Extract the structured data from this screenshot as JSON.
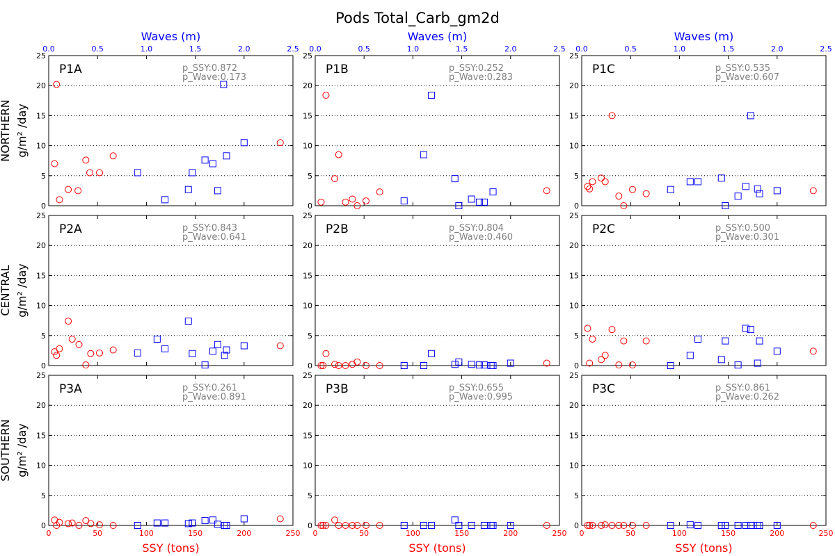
{
  "figure": {
    "title": "Pods Total_Carb_gm2d",
    "row_labels": [
      "NORTHERN",
      "CENTRAL",
      "SOUTHERN"
    ],
    "y_unit_label": "g/m² /day",
    "x_axis_bottom_label": "SSY (tons)",
    "x_axis_top_label": "Waves (m)",
    "ssy_color": "#ff0000",
    "wave_color": "#0000ff",
    "stat_color": "#808080",
    "grid": "dotted horizontal"
  },
  "chart_data": [
    {
      "panel": "P1A",
      "row": 0,
      "col": 0,
      "type": "scatter",
      "p_ssy": "p_SSY:0.872",
      "p_wave": "p_Wave:0.173",
      "xlim": [
        0,
        250
      ],
      "top_xlim": [
        0,
        2.5
      ],
      "ylim": [
        0,
        25
      ],
      "xticks": [
        0,
        50,
        100,
        150,
        200,
        250
      ],
      "top_xticks": [
        "0.0",
        "0.5",
        "1.0",
        "1.5",
        "2.0",
        "2.5"
      ],
      "yticks": [
        0,
        5,
        10,
        15,
        20,
        25
      ],
      "ssy": [
        [
          6,
          7.0
        ],
        [
          8,
          20.2
        ],
        [
          11,
          1.0
        ],
        [
          20,
          2.7
        ],
        [
          30,
          2.5
        ],
        [
          38,
          7.6
        ],
        [
          42,
          5.5
        ],
        [
          52,
          5.5
        ],
        [
          66,
          8.3
        ],
        [
          237,
          10.5
        ]
      ],
      "wave": [
        [
          0.91,
          5.5
        ],
        [
          1.19,
          1.0
        ],
        [
          1.43,
          2.7
        ],
        [
          1.47,
          5.5
        ],
        [
          1.6,
          7.6
        ],
        [
          1.68,
          7.0
        ],
        [
          1.73,
          2.5
        ],
        [
          1.79,
          20.2
        ],
        [
          1.82,
          8.3
        ],
        [
          2.0,
          10.5
        ]
      ]
    },
    {
      "panel": "P1B",
      "row": 0,
      "col": 1,
      "type": "scatter",
      "p_ssy": "p_SSY:0.252",
      "p_wave": "p_Wave:0.283",
      "xlim": [
        0,
        250
      ],
      "top_xlim": [
        0,
        2.5
      ],
      "ylim": [
        0,
        25
      ],
      "xticks": [
        0,
        50,
        100,
        150,
        200,
        250
      ],
      "top_xticks": [
        "0.0",
        "0.5",
        "1.0",
        "1.5",
        "2.0",
        "2.5"
      ],
      "yticks": [
        0,
        5,
        10,
        15,
        20,
        25
      ],
      "ssy": [
        [
          6,
          0.6
        ],
        [
          11,
          18.4
        ],
        [
          20,
          4.5
        ],
        [
          24,
          8.5
        ],
        [
          31,
          0.6
        ],
        [
          38,
          1.1
        ],
        [
          43,
          0
        ],
        [
          52,
          0.8
        ],
        [
          66,
          2.3
        ],
        [
          237,
          2.5
        ]
      ],
      "wave": [
        [
          0.91,
          0.8
        ],
        [
          1.11,
          8.5
        ],
        [
          1.19,
          18.4
        ],
        [
          1.43,
          4.5
        ],
        [
          1.47,
          0
        ],
        [
          1.6,
          1.1
        ],
        [
          1.68,
          0.6
        ],
        [
          1.73,
          0.6
        ],
        [
          1.82,
          2.3
        ]
      ]
    },
    {
      "panel": "P1C",
      "row": 0,
      "col": 2,
      "type": "scatter",
      "p_ssy": "p_SSY:0.535",
      "p_wave": "p_Wave:0.607",
      "xlim": [
        0,
        250
      ],
      "top_xlim": [
        0,
        2.5
      ],
      "ylim": [
        0,
        25
      ],
      "xticks": [
        0,
        50,
        100,
        150,
        200,
        250
      ],
      "top_xticks": [
        "0.0",
        "0.5",
        "1.0",
        "1.5",
        "2.0",
        "2.5"
      ],
      "yticks": [
        0,
        5,
        10,
        15,
        20,
        25
      ],
      "ssy": [
        [
          6,
          3.2
        ],
        [
          8,
          2.8
        ],
        [
          11,
          4.0
        ],
        [
          20,
          4.6
        ],
        [
          24,
          4.0
        ],
        [
          31,
          15.0
        ],
        [
          38,
          1.6
        ],
        [
          43,
          0
        ],
        [
          52,
          2.7
        ],
        [
          66,
          2.0
        ],
        [
          237,
          2.5
        ]
      ],
      "wave": [
        [
          0.91,
          2.7
        ],
        [
          1.11,
          4.0
        ],
        [
          1.19,
          4.0
        ],
        [
          1.43,
          4.6
        ],
        [
          1.47,
          0
        ],
        [
          1.6,
          1.6
        ],
        [
          1.68,
          3.2
        ],
        [
          1.73,
          15.0
        ],
        [
          1.8,
          2.8
        ],
        [
          1.82,
          2.0
        ],
        [
          2.0,
          2.5
        ]
      ]
    },
    {
      "panel": "P2A",
      "row": 1,
      "col": 0,
      "type": "scatter",
      "p_ssy": "p_SSY:0.843",
      "p_wave": "p_Wave:0.641",
      "xlim": [
        0,
        250
      ],
      "top_xlim": [
        0,
        2.5
      ],
      "ylim": [
        0,
        25
      ],
      "xticks": [
        0,
        50,
        100,
        150,
        200,
        250
      ],
      "top_xticks": [
        "0.0",
        "0.5",
        "1.0",
        "1.5",
        "2.0",
        "2.5"
      ],
      "yticks": [
        0,
        5,
        10,
        15,
        20,
        25
      ],
      "ssy": [
        [
          6,
          2.3
        ],
        [
          8,
          1.7
        ],
        [
          11,
          2.8
        ],
        [
          20,
          7.4
        ],
        [
          24,
          4.4
        ],
        [
          31,
          3.5
        ],
        [
          38,
          0.1
        ],
        [
          43,
          2.0
        ],
        [
          52,
          2.1
        ],
        [
          66,
          2.6
        ],
        [
          237,
          3.3
        ]
      ],
      "wave": [
        [
          0.91,
          2.1
        ],
        [
          1.11,
          4.4
        ],
        [
          1.19,
          2.8
        ],
        [
          1.43,
          7.4
        ],
        [
          1.47,
          2.0
        ],
        [
          1.6,
          0.1
        ],
        [
          1.68,
          2.4
        ],
        [
          1.73,
          3.5
        ],
        [
          1.8,
          1.7
        ],
        [
          1.82,
          2.6
        ],
        [
          2.0,
          3.3
        ]
      ]
    },
    {
      "panel": "P2B",
      "row": 1,
      "col": 1,
      "type": "scatter",
      "p_ssy": "p_SSY:0.804",
      "p_wave": "p_Wave:0.460",
      "xlim": [
        0,
        250
      ],
      "top_xlim": [
        0,
        2.5
      ],
      "ylim": [
        0,
        25
      ],
      "xticks": [
        0,
        50,
        100,
        150,
        200,
        250
      ],
      "top_xticks": [
        "0.0",
        "0.5",
        "1.0",
        "1.5",
        "2.0",
        "2.5"
      ],
      "yticks": [
        0,
        5,
        10,
        15,
        20,
        25
      ],
      "ssy": [
        [
          6,
          0
        ],
        [
          8,
          0
        ],
        [
          11,
          2.0
        ],
        [
          20,
          0.2
        ],
        [
          24,
          0
        ],
        [
          31,
          0
        ],
        [
          38,
          0.2
        ],
        [
          43,
          0.6
        ],
        [
          52,
          0
        ],
        [
          66,
          0
        ],
        [
          237,
          0.4
        ]
      ],
      "wave": [
        [
          0.91,
          0
        ],
        [
          1.11,
          0
        ],
        [
          1.19,
          2.0
        ],
        [
          1.43,
          0.2
        ],
        [
          1.47,
          0.6
        ],
        [
          1.6,
          0.2
        ],
        [
          1.68,
          0.1
        ],
        [
          1.73,
          0.1
        ],
        [
          1.8,
          0
        ],
        [
          1.82,
          0
        ],
        [
          2.0,
          0.4
        ]
      ]
    },
    {
      "panel": "P2C",
      "row": 1,
      "col": 2,
      "type": "scatter",
      "p_ssy": "p_SSY:0.500",
      "p_wave": "p_Wave:0.301",
      "xlim": [
        0,
        250
      ],
      "top_xlim": [
        0,
        2.5
      ],
      "ylim": [
        0,
        25
      ],
      "xticks": [
        0,
        50,
        100,
        150,
        200,
        250
      ],
      "top_xticks": [
        "0.0",
        "0.5",
        "1.0",
        "1.5",
        "2.0",
        "2.5"
      ],
      "yticks": [
        0,
        5,
        10,
        15,
        20,
        25
      ],
      "ssy": [
        [
          6,
          6.2
        ],
        [
          8,
          0.4
        ],
        [
          11,
          4.4
        ],
        [
          20,
          1.0
        ],
        [
          24,
          1.7
        ],
        [
          31,
          6.0
        ],
        [
          38,
          0.1
        ],
        [
          43,
          4.1
        ],
        [
          52,
          0.1
        ],
        [
          66,
          4.1
        ],
        [
          237,
          2.4
        ]
      ],
      "wave": [
        [
          0.91,
          0
        ],
        [
          1.11,
          1.7
        ],
        [
          1.19,
          4.4
        ],
        [
          1.43,
          1.0
        ],
        [
          1.47,
          4.1
        ],
        [
          1.6,
          0.1
        ],
        [
          1.68,
          6.2
        ],
        [
          1.73,
          6.0
        ],
        [
          1.8,
          0.4
        ],
        [
          1.82,
          4.1
        ],
        [
          2.0,
          2.4
        ]
      ]
    },
    {
      "panel": "P3A",
      "row": 2,
      "col": 0,
      "type": "scatter",
      "p_ssy": "p_SSY:0.261",
      "p_wave": "p_Wave:0.891",
      "xlim": [
        0,
        250
      ],
      "top_xlim": [
        0,
        2.5
      ],
      "ylim": [
        0,
        25
      ],
      "xticks": [
        0,
        50,
        100,
        150,
        200,
        250
      ],
      "top_xticks": [
        "0.0",
        "0.5",
        "1.0",
        "1.5",
        "2.0",
        "2.5"
      ],
      "yticks": [
        0,
        5,
        10,
        15,
        20,
        25
      ],
      "ssy": [
        [
          6,
          0.9
        ],
        [
          8,
          0
        ],
        [
          11,
          0.5
        ],
        [
          20,
          0.3
        ],
        [
          24,
          0.4
        ],
        [
          31,
          0
        ],
        [
          38,
          0.8
        ],
        [
          43,
          0.3
        ],
        [
          52,
          0.1
        ],
        [
          66,
          0
        ],
        [
          237,
          1.1
        ]
      ],
      "wave": [
        [
          0.91,
          0
        ],
        [
          1.11,
          0.4
        ],
        [
          1.19,
          0.4
        ],
        [
          1.43,
          0.3
        ],
        [
          1.47,
          0.4
        ],
        [
          1.6,
          0.8
        ],
        [
          1.68,
          0.9
        ],
        [
          1.73,
          0.2
        ],
        [
          1.8,
          0
        ],
        [
          1.82,
          0
        ],
        [
          2.0,
          1.1
        ]
      ]
    },
    {
      "panel": "P3B",
      "row": 2,
      "col": 1,
      "type": "scatter",
      "p_ssy": "p_SSY:0.655",
      "p_wave": "p_Wave:0.995",
      "xlim": [
        0,
        250
      ],
      "top_xlim": [
        0,
        2.5
      ],
      "ylim": [
        0,
        25
      ],
      "xticks": [
        0,
        50,
        100,
        150,
        200,
        250
      ],
      "top_xticks": [
        "0.0",
        "0.5",
        "1.0",
        "1.5",
        "2.0",
        "2.5"
      ],
      "yticks": [
        0,
        5,
        10,
        15,
        20,
        25
      ],
      "ssy": [
        [
          6,
          0
        ],
        [
          8,
          0
        ],
        [
          11,
          0
        ],
        [
          20,
          0.9
        ],
        [
          24,
          0
        ],
        [
          31,
          0
        ],
        [
          38,
          0
        ],
        [
          43,
          0
        ],
        [
          52,
          0
        ],
        [
          66,
          0
        ],
        [
          237,
          0
        ]
      ],
      "wave": [
        [
          0.91,
          0
        ],
        [
          1.11,
          0
        ],
        [
          1.19,
          0
        ],
        [
          1.43,
          0.9
        ],
        [
          1.47,
          0
        ],
        [
          1.6,
          0
        ],
        [
          1.73,
          0
        ],
        [
          1.8,
          0
        ],
        [
          1.82,
          0
        ],
        [
          2.0,
          0
        ]
      ]
    },
    {
      "panel": "P3C",
      "row": 2,
      "col": 2,
      "type": "scatter",
      "p_ssy": "p_SSY:0.861",
      "p_wave": "p_Wave:0.262",
      "xlim": [
        0,
        250
      ],
      "top_xlim": [
        0,
        2.5
      ],
      "ylim": [
        0,
        25
      ],
      "xticks": [
        0,
        50,
        100,
        150,
        200,
        250
      ],
      "top_xticks": [
        "0.0",
        "0.5",
        "1.0",
        "1.5",
        "2.0",
        "2.5"
      ],
      "yticks": [
        0,
        5,
        10,
        15,
        20,
        25
      ],
      "ssy": [
        [
          6,
          0
        ],
        [
          8,
          0
        ],
        [
          11,
          0
        ],
        [
          20,
          0
        ],
        [
          24,
          0.1
        ],
        [
          31,
          0
        ],
        [
          38,
          0
        ],
        [
          43,
          0
        ],
        [
          52,
          0
        ],
        [
          66,
          0
        ],
        [
          237,
          0
        ]
      ],
      "wave": [
        [
          0.91,
          0
        ],
        [
          1.11,
          0.1
        ],
        [
          1.19,
          0
        ],
        [
          1.43,
          0
        ],
        [
          1.47,
          0
        ],
        [
          1.6,
          0
        ],
        [
          1.68,
          0
        ],
        [
          1.73,
          0
        ],
        [
          1.8,
          0
        ],
        [
          1.82,
          0
        ],
        [
          2.0,
          0
        ]
      ]
    }
  ]
}
